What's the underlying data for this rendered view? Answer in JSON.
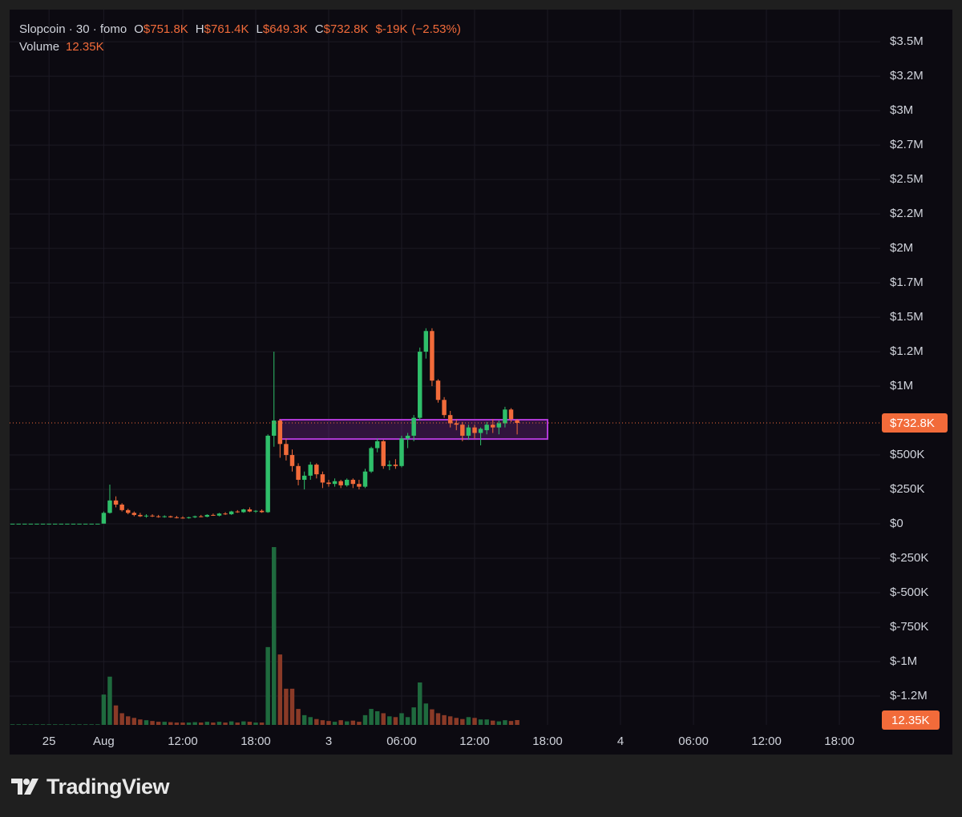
{
  "chart_data": {
    "type": "candlestick",
    "legend": {
      "title": "Slopcoin · 30 · fomo",
      "keys": [
        "O",
        "H",
        "L",
        "C"
      ],
      "value_labels": [
        "$751.8K",
        "$761.4K",
        "$649.3K",
        "$732.8K"
      ],
      "change": {
        "value": -19000,
        "label": "$-19K"
      },
      "change_percent": {
        "value": -2.53,
        "label": "(−2.53%)"
      },
      "volume_key": "Volume",
      "volume_label": "12.35K"
    },
    "branding": "TradingView",
    "up_color": "#2fbf6a",
    "down_color": "#f26b3a",
    "volume_up_color": "#1f6a3e",
    "volume_down_color": "#8a3a27",
    "grid": true,
    "x": [
      -26,
      -25.5,
      -25,
      -24.5,
      -24,
      -23.5,
      -23,
      -22.5,
      -22,
      -21.5,
      -21,
      -20.5,
      -20,
      -19.5,
      -19,
      -18.5,
      -18,
      -17.5,
      -17,
      -16.5,
      -16,
      -15.5,
      -15,
      -14.5,
      -14,
      -13.5,
      -13,
      -12.5,
      -12,
      -11.5,
      -11,
      -10.5,
      -10,
      -9.5,
      -9,
      -8.5,
      -8,
      -7.5,
      -7,
      -6.5,
      -6,
      -5.5,
      -5,
      -4.5,
      -4,
      -3.5,
      -3,
      -2.5,
      -2,
      -1.5,
      -1,
      -0.5,
      0,
      0.5,
      1,
      1.5,
      2,
      2.5,
      3,
      3.5,
      4,
      4.5,
      5,
      5.5,
      6,
      6.5,
      7,
      7.5,
      8,
      8.5,
      9,
      9.5,
      10,
      10.5,
      11,
      11.5,
      12,
      12.5,
      13,
      13.5,
      14,
      14.5,
      15,
      15.5
    ],
    "open": [
      1500,
      1500,
      1500,
      1500,
      1500,
      1500,
      1500,
      1500,
      1500,
      1500,
      1500,
      1500,
      1500,
      1500,
      1500,
      2000,
      80000,
      170000,
      140000,
      100000,
      80000,
      65000,
      55000,
      60000,
      55000,
      50000,
      55000,
      48000,
      45000,
      42000,
      48000,
      55000,
      52000,
      65000,
      60000,
      75000,
      70000,
      90000,
      85000,
      105000,
      90000,
      95000,
      85000,
      640000,
      750000,
      580000,
      500000,
      420000,
      320000,
      350000,
      430000,
      360000,
      300000,
      290000,
      310000,
      280000,
      320000,
      290000,
      270000,
      380000,
      550000,
      600000,
      420000,
      430000,
      420000,
      620000,
      640000,
      770000,
      1250000,
      1400000,
      1040000,
      900000,
      790000,
      730000,
      720000,
      640000,
      700000,
      660000,
      680000,
      720000,
      700000,
      730000,
      830000,
      751800
    ],
    "high": [
      1500,
      1500,
      1500,
      1500,
      1500,
      1500,
      1500,
      1500,
      1500,
      1500,
      1500,
      1500,
      1500,
      1500,
      1500,
      90000,
      285000,
      200000,
      150000,
      110000,
      90000,
      80000,
      70000,
      70000,
      65000,
      62000,
      60000,
      58000,
      55000,
      52000,
      60000,
      65000,
      70000,
      75000,
      80000,
      85000,
      95000,
      100000,
      110000,
      120000,
      100000,
      105000,
      650000,
      1250000,
      760000,
      620000,
      540000,
      440000,
      380000,
      450000,
      440000,
      380000,
      320000,
      330000,
      320000,
      330000,
      330000,
      320000,
      400000,
      560000,
      620000,
      610000,
      460000,
      470000,
      640000,
      660000,
      790000,
      1280000,
      1420000,
      1420000,
      1050000,
      920000,
      820000,
      760000,
      740000,
      720000,
      720000,
      700000,
      740000,
      760000,
      750000,
      850000,
      840000,
      761400
    ],
    "low": [
      1500,
      1500,
      1500,
      1500,
      1500,
      1500,
      1500,
      1500,
      1500,
      1500,
      1500,
      1500,
      1500,
      1500,
      1500,
      2000,
      75000,
      120000,
      90000,
      70000,
      55000,
      50000,
      45000,
      50000,
      45000,
      45000,
      45000,
      40000,
      38000,
      38000,
      42000,
      48000,
      48000,
      58000,
      55000,
      65000,
      65000,
      80000,
      80000,
      85000,
      80000,
      80000,
      80000,
      560000,
      480000,
      460000,
      380000,
      280000,
      250000,
      320000,
      330000,
      260000,
      270000,
      270000,
      260000,
      270000,
      260000,
      250000,
      260000,
      370000,
      520000,
      400000,
      390000,
      400000,
      410000,
      550000,
      600000,
      750000,
      1200000,
      1000000,
      880000,
      770000,
      700000,
      680000,
      600000,
      610000,
      620000,
      570000,
      650000,
      660000,
      650000,
      700000,
      740000,
      649300
    ],
    "close": [
      1500,
      1500,
      1500,
      1500,
      1500,
      1500,
      1500,
      1500,
      1500,
      1500,
      1500,
      1500,
      1500,
      1500,
      1500,
      80000,
      170000,
      140000,
      100000,
      80000,
      65000,
      55000,
      60000,
      55000,
      50000,
      55000,
      48000,
      45000,
      42000,
      48000,
      55000,
      52000,
      65000,
      60000,
      75000,
      70000,
      90000,
      85000,
      105000,
      90000,
      95000,
      85000,
      640000,
      750000,
      580000,
      500000,
      420000,
      320000,
      350000,
      430000,
      360000,
      300000,
      290000,
      310000,
      280000,
      320000,
      290000,
      270000,
      380000,
      550000,
      600000,
      420000,
      430000,
      420000,
      620000,
      640000,
      770000,
      1250000,
      1400000,
      1040000,
      900000,
      790000,
      730000,
      720000,
      640000,
      700000,
      660000,
      690000,
      720000,
      700000,
      730000,
      830000,
      760000,
      732800
    ],
    "volume": [
      1500,
      1500,
      1500,
      1500,
      1500,
      1500,
      1500,
      1500,
      1500,
      1500,
      1500,
      1500,
      1500,
      1500,
      1500,
      78000,
      124000,
      50000,
      30000,
      22000,
      18000,
      14000,
      12000,
      10000,
      8000,
      8000,
      7000,
      6000,
      6000,
      6000,
      7000,
      6000,
      8000,
      6000,
      8000,
      6000,
      9000,
      6000,
      9000,
      8000,
      6000,
      6000,
      200000,
      457000,
      181000,
      93000,
      93000,
      41000,
      25000,
      20000,
      15000,
      12000,
      10000,
      8000,
      12000,
      9000,
      11000,
      8000,
      25000,
      41000,
      35000,
      30000,
      22000,
      20000,
      30000,
      20000,
      45000,
      109000,
      55000,
      40000,
      30000,
      25000,
      22000,
      18000,
      15000,
      20000,
      18000,
      14000,
      14000,
      11000,
      9000,
      12000,
      10000,
      12350
    ],
    "xlim": [
      -26.24,
      45.36
    ],
    "ylim": [
      -1459000,
      3733000
    ],
    "volume_ylim": [
      0,
      525000
    ],
    "xticks": [
      {
        "value": -23,
        "label": "25"
      },
      {
        "value": -18.5,
        "label": "Aug"
      },
      {
        "value": -12,
        "label": "12:00"
      },
      {
        "value": -6,
        "label": "18:00"
      },
      {
        "value": 0,
        "label": "3"
      },
      {
        "value": 6,
        "label": "06:00"
      },
      {
        "value": 12,
        "label": "12:00"
      },
      {
        "value": 18,
        "label": "18:00"
      },
      {
        "value": 24,
        "label": "4"
      },
      {
        "value": 30,
        "label": "06:00"
      },
      {
        "value": 36,
        "label": "12:00"
      },
      {
        "value": 42,
        "label": "18:00"
      }
    ],
    "yticks": [
      {
        "value": 3500000,
        "label": "$3.5M"
      },
      {
        "value": 3250000,
        "label": "$3.2M"
      },
      {
        "value": 3000000,
        "label": "$3M"
      },
      {
        "value": 2750000,
        "label": "$2.7M"
      },
      {
        "value": 2500000,
        "label": "$2.5M"
      },
      {
        "value": 2250000,
        "label": "$2.2M"
      },
      {
        "value": 2000000,
        "label": "$2M"
      },
      {
        "value": 1750000,
        "label": "$1.7M"
      },
      {
        "value": 1500000,
        "label": "$1.5M"
      },
      {
        "value": 1250000,
        "label": "$1.2M"
      },
      {
        "value": 1000000,
        "label": "$1M"
      },
      {
        "value": 500000,
        "label": "$500K"
      },
      {
        "value": 250000,
        "label": "$250K"
      },
      {
        "value": 0,
        "label": "$0"
      },
      {
        "value": -250000,
        "label": "$-250K"
      },
      {
        "value": -500000,
        "label": "$-500K"
      },
      {
        "value": -750000,
        "label": "$-750K"
      },
      {
        "value": -1000000,
        "label": "$-1M"
      },
      {
        "value": -1250000,
        "label": "$-1.2M"
      }
    ],
    "rectangle": {
      "x": [
        -4,
        18
      ],
      "y": [
        616000,
        756000
      ],
      "color": "#b03ad6"
    }
  }
}
